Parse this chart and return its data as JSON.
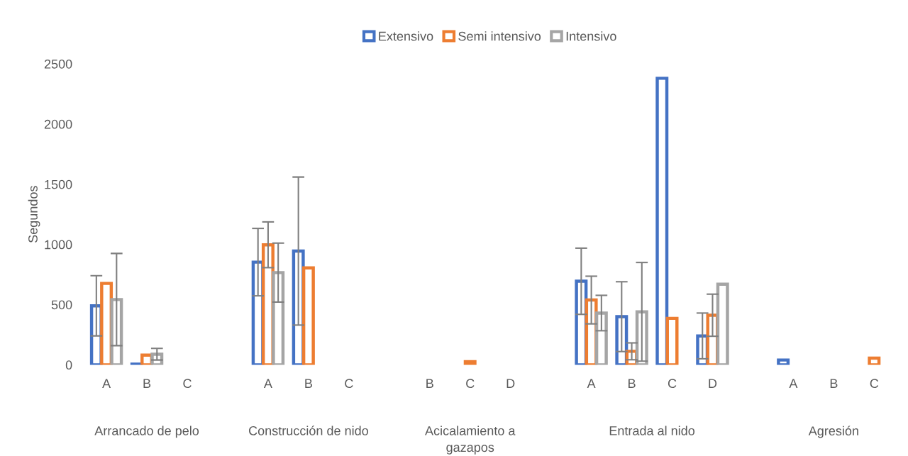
{
  "chart_data": {
    "type": "bar",
    "ylabel": "Segundos",
    "categories": [
      "A",
      "B",
      "C",
      null,
      "A",
      "B",
      "C",
      null,
      "B",
      "C",
      "D",
      null,
      "A",
      "B",
      "C",
      "D",
      null,
      "A",
      "B",
      "C"
    ],
    "series": [
      {
        "name": "Extensivo",
        "color": "#4472c4",
        "values": [
          490,
          5,
          null,
          null,
          853,
          945,
          null,
          null,
          null,
          null,
          null,
          null,
          694,
          400,
          2380,
          240,
          null,
          40,
          null,
          null
        ],
        "errors": [
          250,
          null,
          null,
          null,
          280,
          615,
          null,
          null,
          null,
          null,
          null,
          null,
          275,
          290,
          null,
          190,
          null,
          null,
          null,
          null
        ]
      },
      {
        "name": "Semi intensivo",
        "color": "#ed7d31",
        "values": [
          676,
          80,
          null,
          null,
          997,
          805,
          null,
          null,
          null,
          26,
          null,
          null,
          538,
          112,
          386,
          412,
          null,
          null,
          null,
          55
        ],
        "errors": [
          null,
          null,
          null,
          null,
          190,
          null,
          null,
          null,
          null,
          null,
          null,
          null,
          198,
          70,
          null,
          175,
          null,
          null,
          null,
          null
        ]
      },
      {
        "name": "Intensivo",
        "color": "#a5a5a5",
        "values": [
          542,
          88,
          null,
          null,
          766,
          null,
          null,
          null,
          null,
          null,
          null,
          null,
          430,
          440,
          null,
          670,
          null,
          null,
          null,
          null
        ],
        "errors": [
          383,
          48,
          null,
          null,
          245,
          null,
          null,
          null,
          null,
          null,
          null,
          null,
          147,
          410,
          null,
          null,
          null,
          null,
          null,
          null
        ]
      }
    ],
    "ylim": [
      0,
      2500
    ],
    "yticks": [
      0,
      500,
      1000,
      1500,
      2000,
      2500
    ],
    "legend": "top",
    "annotations": [
      "Arrancado de pelo",
      "Construcción de nido",
      "Acicalamiento a\ngazapos",
      "Entrada al nido",
      "Agresión"
    ]
  }
}
